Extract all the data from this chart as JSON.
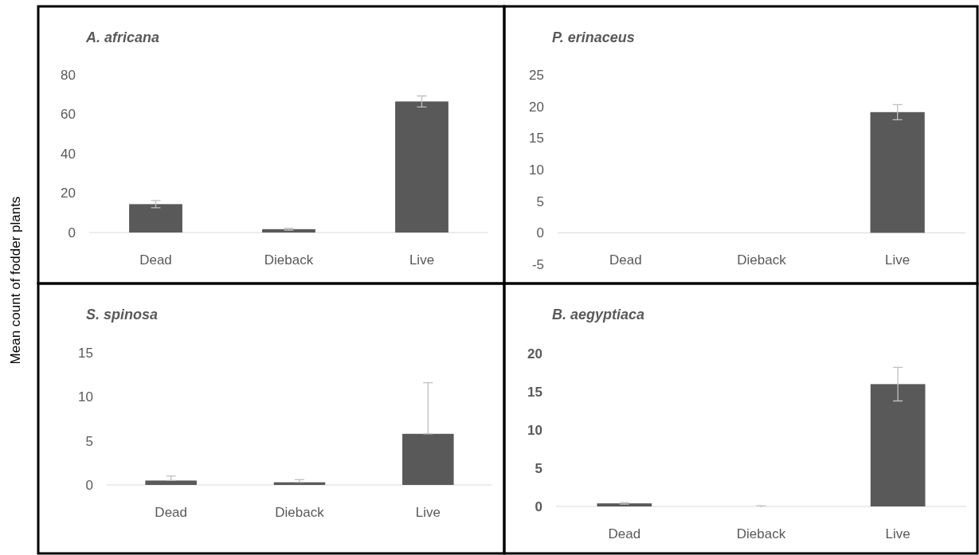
{
  "chart_data": [
    {
      "type": "bar",
      "title": "A. africana",
      "ylabel": "Mean count of fodder plants",
      "categories": [
        "Dead",
        "Dieback",
        "Live"
      ],
      "values": [
        14.4,
        1.7,
        66.5
      ],
      "errors": [
        1.8,
        0.5,
        2.8
      ],
      "color": "#595959",
      "ylim": [
        0,
        80
      ],
      "yticks": [
        0,
        20,
        40,
        60,
        80
      ],
      "grid": false
    },
    {
      "type": "bar",
      "title": "P. erinaceus",
      "categories": [
        "Dead",
        "Dieback",
        "Live"
      ],
      "values": [
        0,
        0,
        19.1
      ],
      "errors": [
        null,
        null,
        1.2
      ],
      "color": "#595959",
      "ylim": [
        -5,
        25
      ],
      "yticks": [
        -5,
        0,
        5,
        10,
        15,
        20,
        25
      ],
      "grid": false
    },
    {
      "type": "bar",
      "title": "S. spinosa",
      "categories": [
        "Dead",
        "Dieback",
        "Live"
      ],
      "values": [
        0.5,
        0.3,
        5.8
      ],
      "errors": [
        [
          0.5,
          1
        ],
        [
          0.3,
          0.6
        ],
        [
          5.8,
          11.6
        ]
      ],
      "color": "#595959",
      "ylim": [
        0,
        15
      ],
      "yticks": [
        0,
        5,
        10,
        15
      ],
      "grid": false
    },
    {
      "type": "bar",
      "title": "B. aegyptiaca",
      "categories": [
        "Dead",
        "Dieback",
        "Live"
      ],
      "values": [
        0.4,
        0,
        16
      ],
      "errors": [
        0.1,
        0.1,
        2.2
      ],
      "color": "#595959",
      "ylim": [
        0,
        20
      ],
      "yticks": [
        0,
        5,
        10,
        15,
        20
      ],
      "grid": false
    }
  ]
}
